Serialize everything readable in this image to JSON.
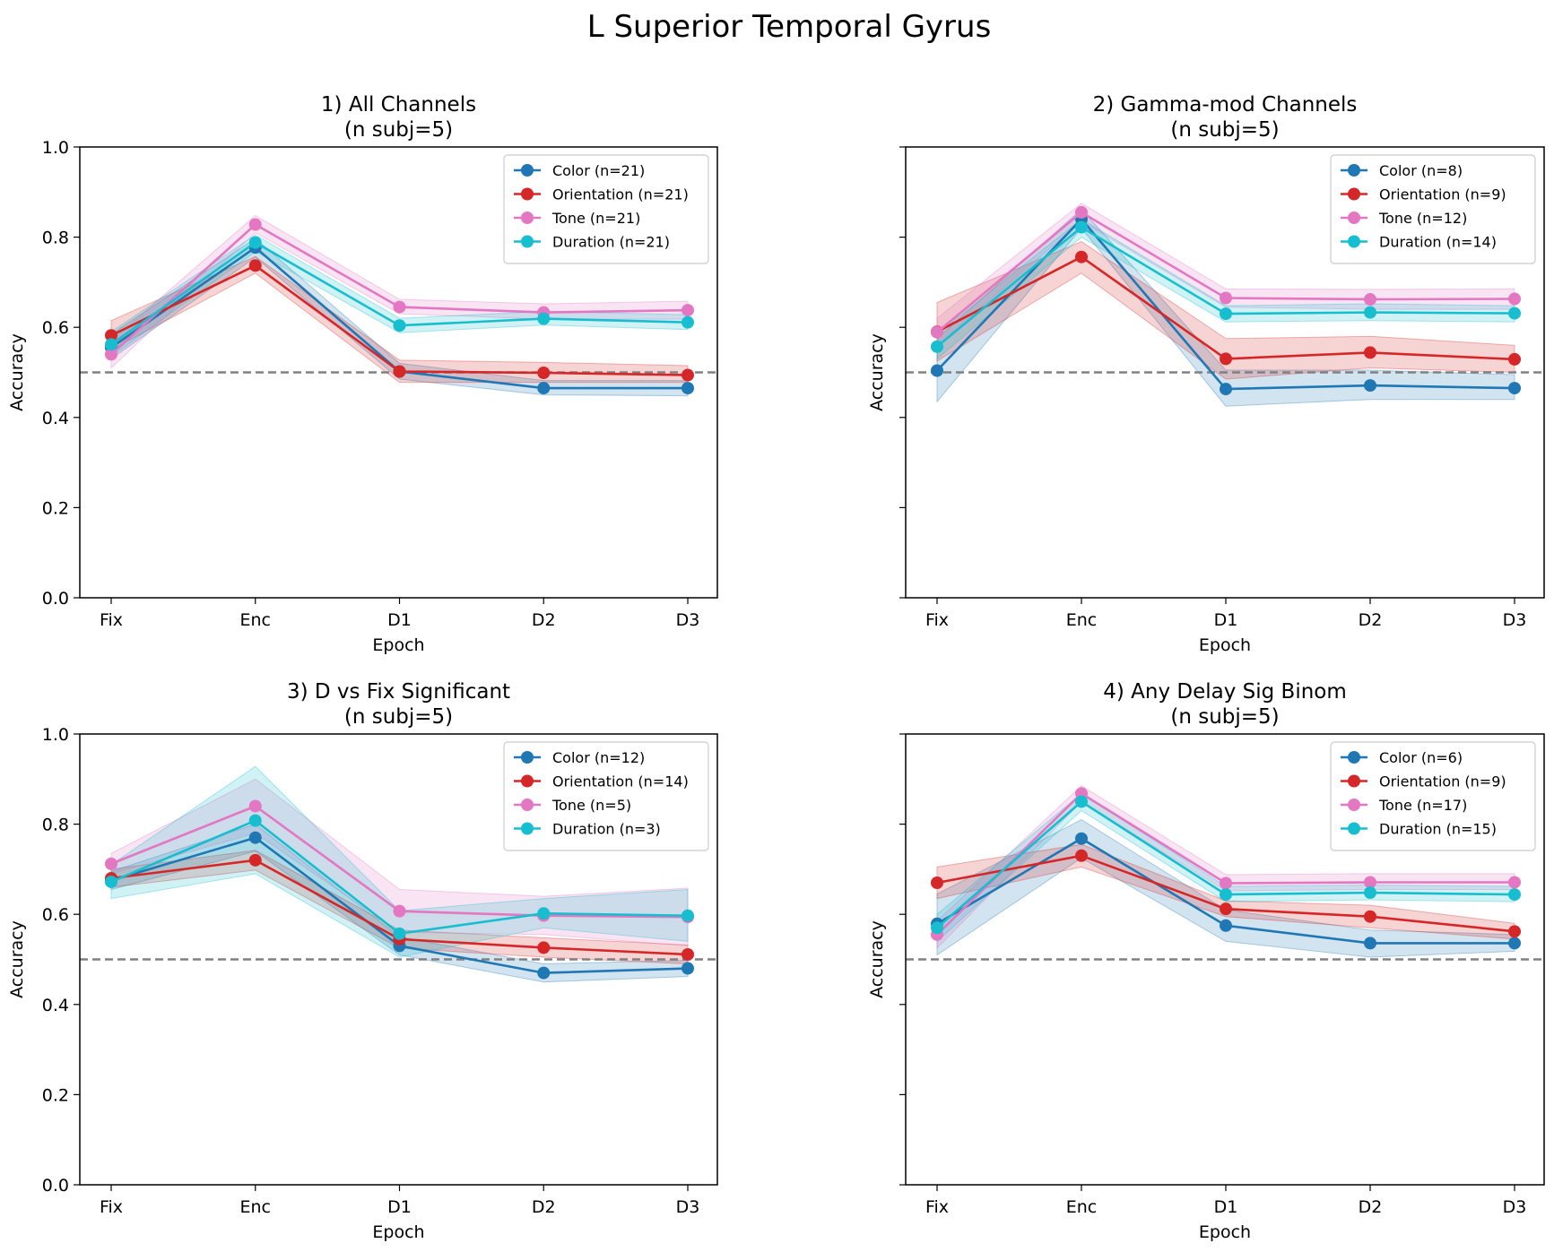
{
  "figure": {
    "suptitle": "L Superior Temporal Gyrus"
  },
  "colors": {
    "Color": "#1f77b4",
    "Orientation": "#d62728",
    "Tone": "#e377c2",
    "Duration": "#17becf",
    "chance": "#808080"
  },
  "chart_data": [
    {
      "type": "line",
      "title": "1) All Channels",
      "subtitle": "(n subj=5)",
      "xlabel": "Epoch",
      "ylabel": "Accuracy",
      "categories": [
        "Fix",
        "Enc",
        "D1",
        "D2",
        "D3"
      ],
      "ylim": [
        0,
        1
      ],
      "yticks": [
        "0.0",
        "0.2",
        "0.4",
        "0.6",
        "0.8",
        "1.0"
      ],
      "chance_level": 0.5,
      "legend_position": "upper-right",
      "series": [
        {
          "name": "Color (n=21)",
          "key": "Color",
          "values": [
            0.555,
            0.777,
            0.502,
            0.465,
            0.465
          ],
          "lower": [
            0.53,
            0.755,
            0.485,
            0.45,
            0.448
          ],
          "upper": [
            0.585,
            0.797,
            0.52,
            0.482,
            0.482
          ]
        },
        {
          "name": "Orientation (n=21)",
          "key": "Orientation",
          "values": [
            0.582,
            0.737,
            0.502,
            0.499,
            0.494
          ],
          "lower": [
            0.55,
            0.72,
            0.478,
            0.478,
            0.478
          ],
          "upper": [
            0.615,
            0.757,
            0.527,
            0.522,
            0.515
          ]
        },
        {
          "name": "Tone (n=21)",
          "key": "Tone",
          "values": [
            0.54,
            0.828,
            0.645,
            0.633,
            0.638
          ],
          "lower": [
            0.51,
            0.81,
            0.63,
            0.618,
            0.618
          ],
          "upper": [
            0.57,
            0.848,
            0.662,
            0.652,
            0.658
          ]
        },
        {
          "name": "Duration (n=21)",
          "key": "Duration",
          "values": [
            0.562,
            0.788,
            0.604,
            0.619,
            0.611
          ],
          "lower": [
            0.535,
            0.768,
            0.588,
            0.605,
            0.595
          ],
          "upper": [
            0.59,
            0.805,
            0.62,
            0.635,
            0.628
          ]
        }
      ]
    },
    {
      "type": "line",
      "title": "2) Gamma-mod Channels",
      "subtitle": "(n subj=5)",
      "xlabel": "Epoch",
      "ylabel": "Accuracy",
      "categories": [
        "Fix",
        "Enc",
        "D1",
        "D2",
        "D3"
      ],
      "ylim": [
        0,
        1
      ],
      "yticks": [
        "0.0",
        "0.2",
        "0.4",
        "0.6",
        "0.8",
        "1.0"
      ],
      "chance_level": 0.5,
      "legend_position": "upper-right",
      "series": [
        {
          "name": "Color (n=8)",
          "key": "Color",
          "values": [
            0.504,
            0.84,
            0.463,
            0.471,
            0.465
          ],
          "lower": [
            0.435,
            0.82,
            0.425,
            0.44,
            0.44
          ],
          "upper": [
            0.575,
            0.862,
            0.505,
            0.505,
            0.495
          ]
        },
        {
          "name": "Orientation (n=9)",
          "key": "Orientation",
          "values": [
            0.59,
            0.756,
            0.53,
            0.544,
            0.529
          ],
          "lower": [
            0.525,
            0.72,
            0.485,
            0.51,
            0.5
          ],
          "upper": [
            0.655,
            0.79,
            0.575,
            0.58,
            0.56
          ]
        },
        {
          "name": "Tone (n=12)",
          "key": "Tone",
          "values": [
            0.589,
            0.855,
            0.665,
            0.662,
            0.663
          ],
          "lower": [
            0.56,
            0.835,
            0.645,
            0.64,
            0.64
          ],
          "upper": [
            0.62,
            0.875,
            0.685,
            0.684,
            0.685
          ]
        },
        {
          "name": "Duration (n=14)",
          "key": "Duration",
          "values": [
            0.557,
            0.822,
            0.63,
            0.633,
            0.631
          ],
          "lower": [
            0.53,
            0.8,
            0.612,
            0.615,
            0.612
          ],
          "upper": [
            0.585,
            0.84,
            0.648,
            0.652,
            0.648
          ]
        }
      ]
    },
    {
      "type": "line",
      "title": "3) D vs Fix Significant",
      "subtitle": "(n subj=5)",
      "xlabel": "Epoch",
      "ylabel": "Accuracy",
      "categories": [
        "Fix",
        "Enc",
        "D1",
        "D2",
        "D3"
      ],
      "ylim": [
        0,
        1
      ],
      "yticks": [
        "0.0",
        "0.2",
        "0.4",
        "0.6",
        "0.8",
        "1.0"
      ],
      "chance_level": 0.5,
      "legend_position": "upper-right",
      "series": [
        {
          "name": "Color (n=12)",
          "key": "Color",
          "values": [
            0.675,
            0.77,
            0.53,
            0.47,
            0.48
          ],
          "lower": [
            0.655,
            0.74,
            0.51,
            0.45,
            0.462
          ],
          "upper": [
            0.695,
            0.8,
            0.55,
            0.49,
            0.498
          ]
        },
        {
          "name": "Orientation (n=14)",
          "key": "Orientation",
          "values": [
            0.68,
            0.72,
            0.545,
            0.526,
            0.511
          ],
          "lower": [
            0.66,
            0.698,
            0.525,
            0.505,
            0.49
          ],
          "upper": [
            0.7,
            0.742,
            0.565,
            0.548,
            0.532
          ]
        },
        {
          "name": "Tone (n=5)",
          "key": "Tone",
          "values": [
            0.712,
            0.84,
            0.607,
            0.597,
            0.594
          ],
          "lower": [
            0.69,
            0.78,
            0.56,
            0.555,
            0.53
          ],
          "upper": [
            0.735,
            0.9,
            0.655,
            0.64,
            0.658
          ]
        },
        {
          "name": "Duration (n=3)",
          "key": "Duration",
          "values": [
            0.672,
            0.808,
            0.557,
            0.602,
            0.597
          ],
          "lower": [
            0.635,
            0.69,
            0.505,
            0.57,
            0.54
          ],
          "upper": [
            0.71,
            0.928,
            0.608,
            0.635,
            0.655
          ]
        }
      ]
    },
    {
      "type": "line",
      "title": "4) Any Delay Sig Binom",
      "subtitle": "(n subj=5)",
      "xlabel": "Epoch",
      "ylabel": "Accuracy",
      "categories": [
        "Fix",
        "Enc",
        "D1",
        "D2",
        "D3"
      ],
      "ylim": [
        0,
        1
      ],
      "yticks": [
        "0.0",
        "0.2",
        "0.4",
        "0.6",
        "0.8",
        "1.0"
      ],
      "chance_level": 0.5,
      "legend_position": "upper-right",
      "series": [
        {
          "name": "Color (n=6)",
          "key": "Color",
          "values": [
            0.579,
            0.768,
            0.575,
            0.536,
            0.536
          ],
          "lower": [
            0.51,
            0.725,
            0.54,
            0.505,
            0.518
          ],
          "upper": [
            0.645,
            0.81,
            0.61,
            0.565,
            0.555
          ]
        },
        {
          "name": "Orientation (n=9)",
          "key": "Orientation",
          "values": [
            0.67,
            0.73,
            0.612,
            0.595,
            0.562
          ],
          "lower": [
            0.635,
            0.705,
            0.595,
            0.57,
            0.545
          ],
          "upper": [
            0.705,
            0.755,
            0.63,
            0.62,
            0.58
          ]
        },
        {
          "name": "Tone (n=17)",
          "key": "Tone",
          "values": [
            0.555,
            0.868,
            0.669,
            0.671,
            0.671
          ],
          "lower": [
            0.525,
            0.85,
            0.652,
            0.655,
            0.655
          ],
          "upper": [
            0.585,
            0.885,
            0.688,
            0.69,
            0.69
          ]
        },
        {
          "name": "Duration (n=15)",
          "key": "Duration",
          "values": [
            0.57,
            0.85,
            0.644,
            0.648,
            0.644
          ],
          "lower": [
            0.54,
            0.83,
            0.628,
            0.632,
            0.628
          ],
          "upper": [
            0.6,
            0.868,
            0.662,
            0.665,
            0.662
          ]
        }
      ]
    }
  ]
}
